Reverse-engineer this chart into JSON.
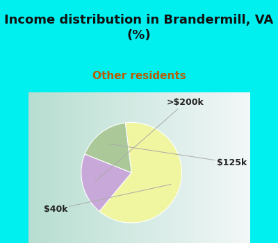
{
  "title": "Income distribution in Brandermill, VA\n(%)",
  "subtitle": "Other residents",
  "title_color": "#111111",
  "subtitle_color": "#b85c00",
  "top_bg": "#00f0f0",
  "chart_bg_left": "#b8ddd0",
  "chart_bg_right": "#f0f0f0",
  "slices": [
    {
      "label": "$40k",
      "value": 63,
      "color": "#f0f5a0"
    },
    {
      "label": ">$200k",
      "value": 20,
      "color": "#c8a8d8"
    },
    {
      "label": "$125k",
      "value": 17,
      "color": "#aac898"
    }
  ],
  "startangle": 97,
  "label_fontsize": 9,
  "title_fontsize": 13,
  "subtitle_fontsize": 11,
  "label_color": "#222222"
}
